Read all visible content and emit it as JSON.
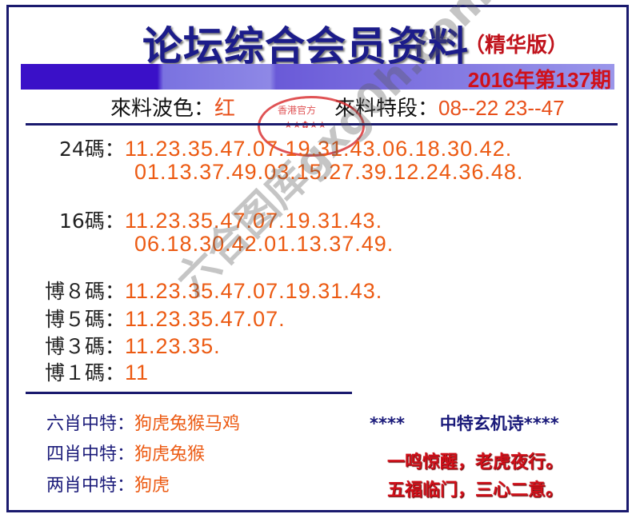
{
  "title": "论坛综合会员资料",
  "subtitle": "（精华版）",
  "issue": "2016年第137期",
  "wave": {
    "label": "來料波色：",
    "value": "红"
  },
  "segment": {
    "label": "來料特段：",
    "value": "08--22  23--47"
  },
  "stamp": {
    "text": "香港官方",
    "stars": "★★✿★★"
  },
  "watermark": "六合图库gxg0h.com",
  "rows": [
    {
      "label": "24碼：",
      "lines": [
        "11.23.35.47.07.19.31.43.06.18.30.42.",
        "01.13.37.49.03.15.27.39.12.24.36.48."
      ]
    },
    {
      "label": "16碼：",
      "lines": [
        "11.23.35.47.07.19.31.43.",
        "06.18.30.42.01.13.37.49."
      ]
    },
    {
      "label": "博８碼：",
      "lines": [
        "11.23.35.47.07.19.31.43."
      ]
    },
    {
      "label": "博５碼：",
      "lines": [
        "11.23.35.47.07."
      ]
    },
    {
      "label": "博３碼：",
      "lines": [
        "11.23.35."
      ]
    },
    {
      "label": "博１碼：",
      "lines": [
        "11"
      ]
    }
  ],
  "zodiac": [
    {
      "label": "六肖中特：",
      "value": "狗虎兔猴马鸡"
    },
    {
      "label": "四肖中特：",
      "value": "狗虎兔猴"
    },
    {
      "label": "两肖中特：",
      "value": "狗虎"
    }
  ],
  "poem": {
    "title": "****      中特玄机诗****",
    "lines": [
      "一鸣惊醒，老虎夜行。",
      "五福临门，三心二意。"
    ]
  }
}
